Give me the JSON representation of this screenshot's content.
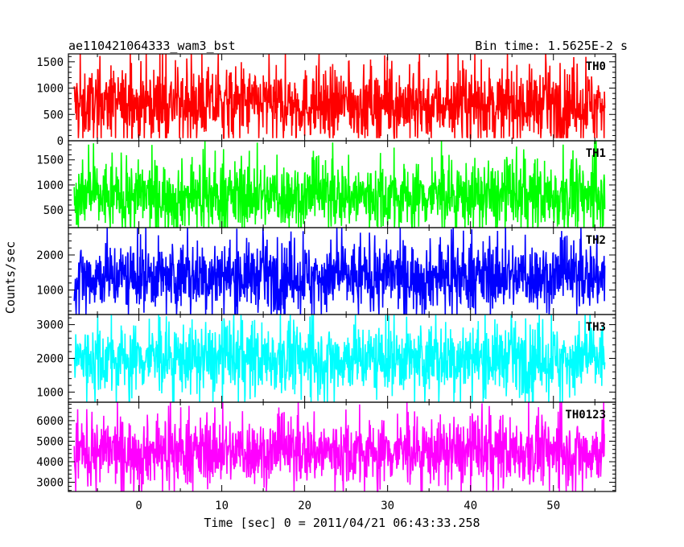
{
  "chart_data": {
    "type": "line",
    "title": "ae110421064333_wam3_bst",
    "subtitle": "Bin time: 1.5625E-2 s",
    "xlabel": "Time [sec] 0 = 2011/04/21 06:43:33.258",
    "ylabel": "Counts/sec",
    "xlim": [
      -8.5,
      57.5
    ],
    "x_ticks": [
      0,
      10,
      20,
      30,
      40,
      50
    ],
    "x_data_range": [
      -7.8,
      56.2
    ],
    "grid": false,
    "panels": [
      {
        "name": "TH0",
        "color": "#ff0000",
        "ylim": [
          0,
          1650
        ],
        "y_ticks": [
          0,
          500,
          1000,
          1500
        ],
        "mean": 700,
        "typical_min": 200,
        "typical_max": 1250,
        "peak_min": 50,
        "peak_max": 1650
      },
      {
        "name": "TH1",
        "color": "#00ff00",
        "ylim": [
          150,
          1880
        ],
        "y_ticks": [
          500,
          1000,
          1500
        ],
        "mean": 780,
        "typical_min": 300,
        "typical_max": 1350,
        "peak_min": 150,
        "peak_max": 1880
      },
      {
        "name": "TH2",
        "color": "#0000ff",
        "ylim": [
          300,
          2780
        ],
        "y_ticks": [
          1000,
          2000
        ],
        "mean": 1400,
        "typical_min": 700,
        "typical_max": 2200,
        "peak_min": 300,
        "peak_max": 2780
      },
      {
        "name": "TH3",
        "color": "#00ffff",
        "ylim": [
          700,
          3300
        ],
        "y_ticks": [
          1000,
          2000,
          3000
        ],
        "mean": 2000,
        "typical_min": 1200,
        "typical_max": 2800,
        "peak_min": 700,
        "peak_max": 3300
      },
      {
        "name": "TH0123",
        "color": "#ff00ff",
        "ylim": [
          2550,
          6900
        ],
        "y_ticks": [
          3000,
          4000,
          5000,
          6000
        ],
        "mean": 4500,
        "typical_min": 3300,
        "typical_max": 5800,
        "peak_min": 2550,
        "peak_max": 6900
      }
    ]
  }
}
